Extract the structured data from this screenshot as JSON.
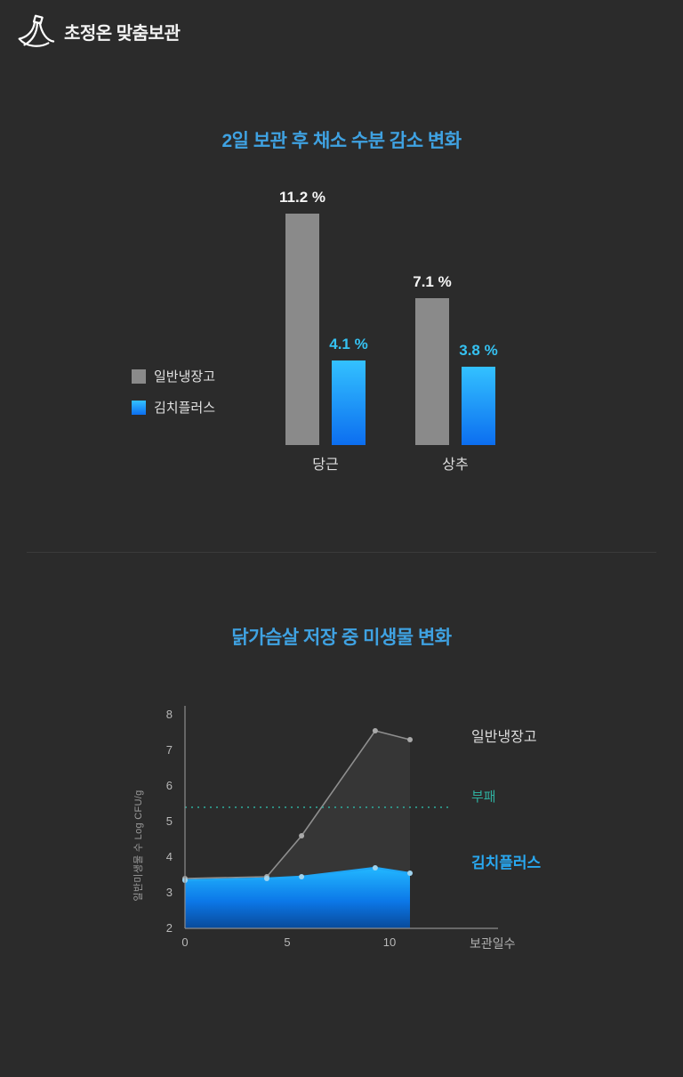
{
  "header": {
    "brand": "초정온 맞춤보관",
    "icon": "bananas-icon"
  },
  "colors": {
    "background": "#2b2b2b",
    "title_blue": "#3fa2e2",
    "gray_series": "#8a8a8a",
    "blue_series": "#29a8f0",
    "blue_gradient_top": "#33c1ff",
    "blue_gradient_bottom": "#0c6ef0",
    "threshold_teal": "#2fae9e",
    "white_label": "#f5f5f5",
    "cyan_label": "#35c2f2"
  },
  "chart_data": [
    {
      "type": "bar",
      "title": "2일 보관 후 채소 수분 감소 변화",
      "categories": [
        "당근",
        "상추"
      ],
      "series": [
        {
          "name": "일반냉장고",
          "values": [
            11.2,
            7.1
          ],
          "color": "#8a8a8a",
          "label_color": "#f5f5f5"
        },
        {
          "name": "김치플러스",
          "values": [
            4.1,
            3.8
          ],
          "color": "#29a8f0",
          "gradient_top": "#33c1ff",
          "gradient_bottom": "#0c6ef0",
          "label_color": "#35c2f2"
        }
      ],
      "value_suffix": " %",
      "ylim": [
        0,
        12
      ],
      "legend_position": "left",
      "grid": false
    },
    {
      "type": "line",
      "title": "닭가슴살 저장 중 미생물 변화",
      "xlabel": "보관일수",
      "ylabel": "일반미생물 수 Log CFU/g",
      "x_ticks": [
        0,
        5,
        10
      ],
      "y_ticks": [
        2,
        3,
        4,
        5,
        6,
        7,
        8
      ],
      "xlim": [
        0,
        13
      ],
      "ylim": [
        2,
        8
      ],
      "grid": false,
      "threshold": {
        "label": "부패",
        "value": 5.4,
        "color": "#2fae9e",
        "style": "dotted"
      },
      "series": [
        {
          "name": "일반냉장고",
          "color": "#8f8f8f",
          "x": [
            0,
            4,
            5.7,
            9.3,
            11
          ],
          "y": [
            3.4,
            3.45,
            4.6,
            7.55,
            7.3
          ]
        },
        {
          "name": "김치플러스",
          "color": "#1ea6f6",
          "area_fill": true,
          "x": [
            0,
            4,
            5.7,
            9.3,
            11
          ],
          "y": [
            3.35,
            3.4,
            3.45,
            3.7,
            3.55
          ]
        }
      ],
      "legend_position": "right"
    }
  ]
}
